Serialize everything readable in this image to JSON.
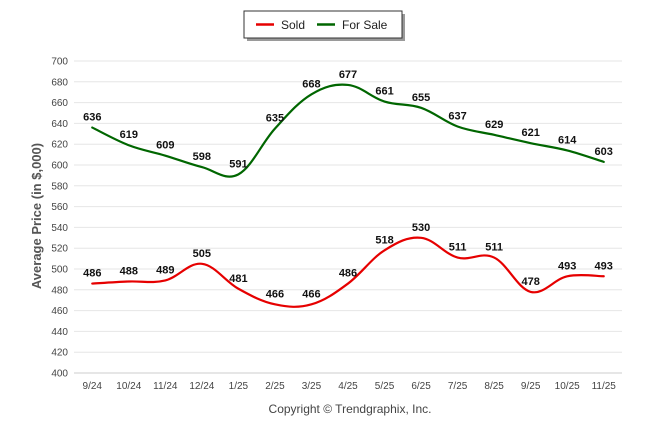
{
  "chart_data": {
    "type": "line",
    "title": "",
    "xlabel": "",
    "ylabel": "Average Price (in $,000)",
    "ylim": [
      400,
      700
    ],
    "ytick_step": 20,
    "categories": [
      "9/24",
      "10/24",
      "11/24",
      "12/24",
      "1/25",
      "2/25",
      "3/25",
      "4/25",
      "5/25",
      "6/25",
      "7/25",
      "8/25",
      "9/25",
      "10/25",
      "11/25"
    ],
    "series": [
      {
        "name": "Sold",
        "color": "#e60000",
        "values": [
          486,
          488,
          489,
          505,
          481,
          466,
          466,
          486,
          518,
          530,
          511,
          511,
          478,
          493,
          493
        ]
      },
      {
        "name": "For Sale",
        "color": "#006600",
        "values": [
          636,
          619,
          609,
          598,
          591,
          635,
          668,
          677,
          661,
          655,
          637,
          629,
          621,
          614,
          603
        ]
      }
    ],
    "legend": "top-center",
    "grid": true
  },
  "copyright": "Copyright © Trendgraphix, Inc."
}
